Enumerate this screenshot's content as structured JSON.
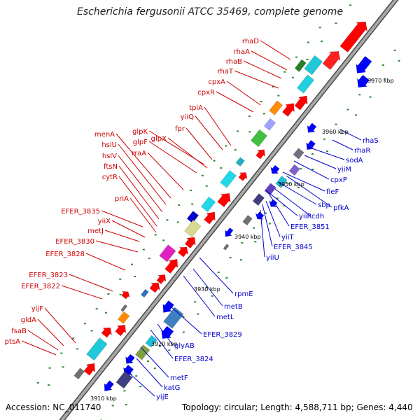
{
  "title": "Escherichia fergusonii ATCC 35469, complete genome",
  "footer": {
    "accession": "Accession: NC_011740",
    "stats": "Topology: circular; Length: 4,588,711 bp; Genes: 4,440"
  },
  "colors": {
    "backbone": "#808080",
    "forward_label": "#cc0000",
    "reverse_label": "#0000cc",
    "forward_cds": "#ff0000",
    "reverse_cds": "#0000ff",
    "orf_tick": "#2e8b2e"
  },
  "scale_ticks": [
    {
      "label": "3910 kbp",
      "kbp": 3910
    },
    {
      "label": "3920 kbp",
      "kbp": 3920
    },
    {
      "label": "3930 kbp",
      "kbp": 3930
    },
    {
      "label": "3940 kbp",
      "kbp": 3940
    },
    {
      "label": "3950 kbp",
      "kbp": 3950
    },
    {
      "label": "3960 kbp",
      "kbp": 3960
    },
    {
      "label": "3970 kbp",
      "kbp": 3970
    }
  ],
  "forward_labels": [
    "rhaD",
    "rhaA",
    "rhaB",
    "rhaT",
    "cpxA",
    "cpxR",
    "tpiA",
    "yiiQ",
    "fpr",
    "glpK",
    "glpF",
    "glpX",
    "rraA",
    "menA",
    "hslU",
    "hslV",
    "ftsN",
    "cytR",
    "priA",
    "EFER_3835",
    "yiiX",
    "metJ",
    "EFER_3830",
    "EFER_3828",
    "EFER_3823",
    "EFER_3822",
    "yijF",
    "gldA",
    "fsaB",
    "ptsA"
  ],
  "reverse_labels": [
    "rhaS",
    "rhaR",
    "sodA",
    "yiiM",
    "cpxP",
    "fieF",
    "pfkA",
    "sbp",
    "cdh",
    "yiiR",
    "EFER_3851",
    "yiiT",
    "EFER_3845",
    "yiiU",
    "rpmE",
    "metB",
    "metL",
    "EFER_3829",
    "glyAB",
    "EFER_3824",
    "metF",
    "katG",
    "yijE"
  ]
}
